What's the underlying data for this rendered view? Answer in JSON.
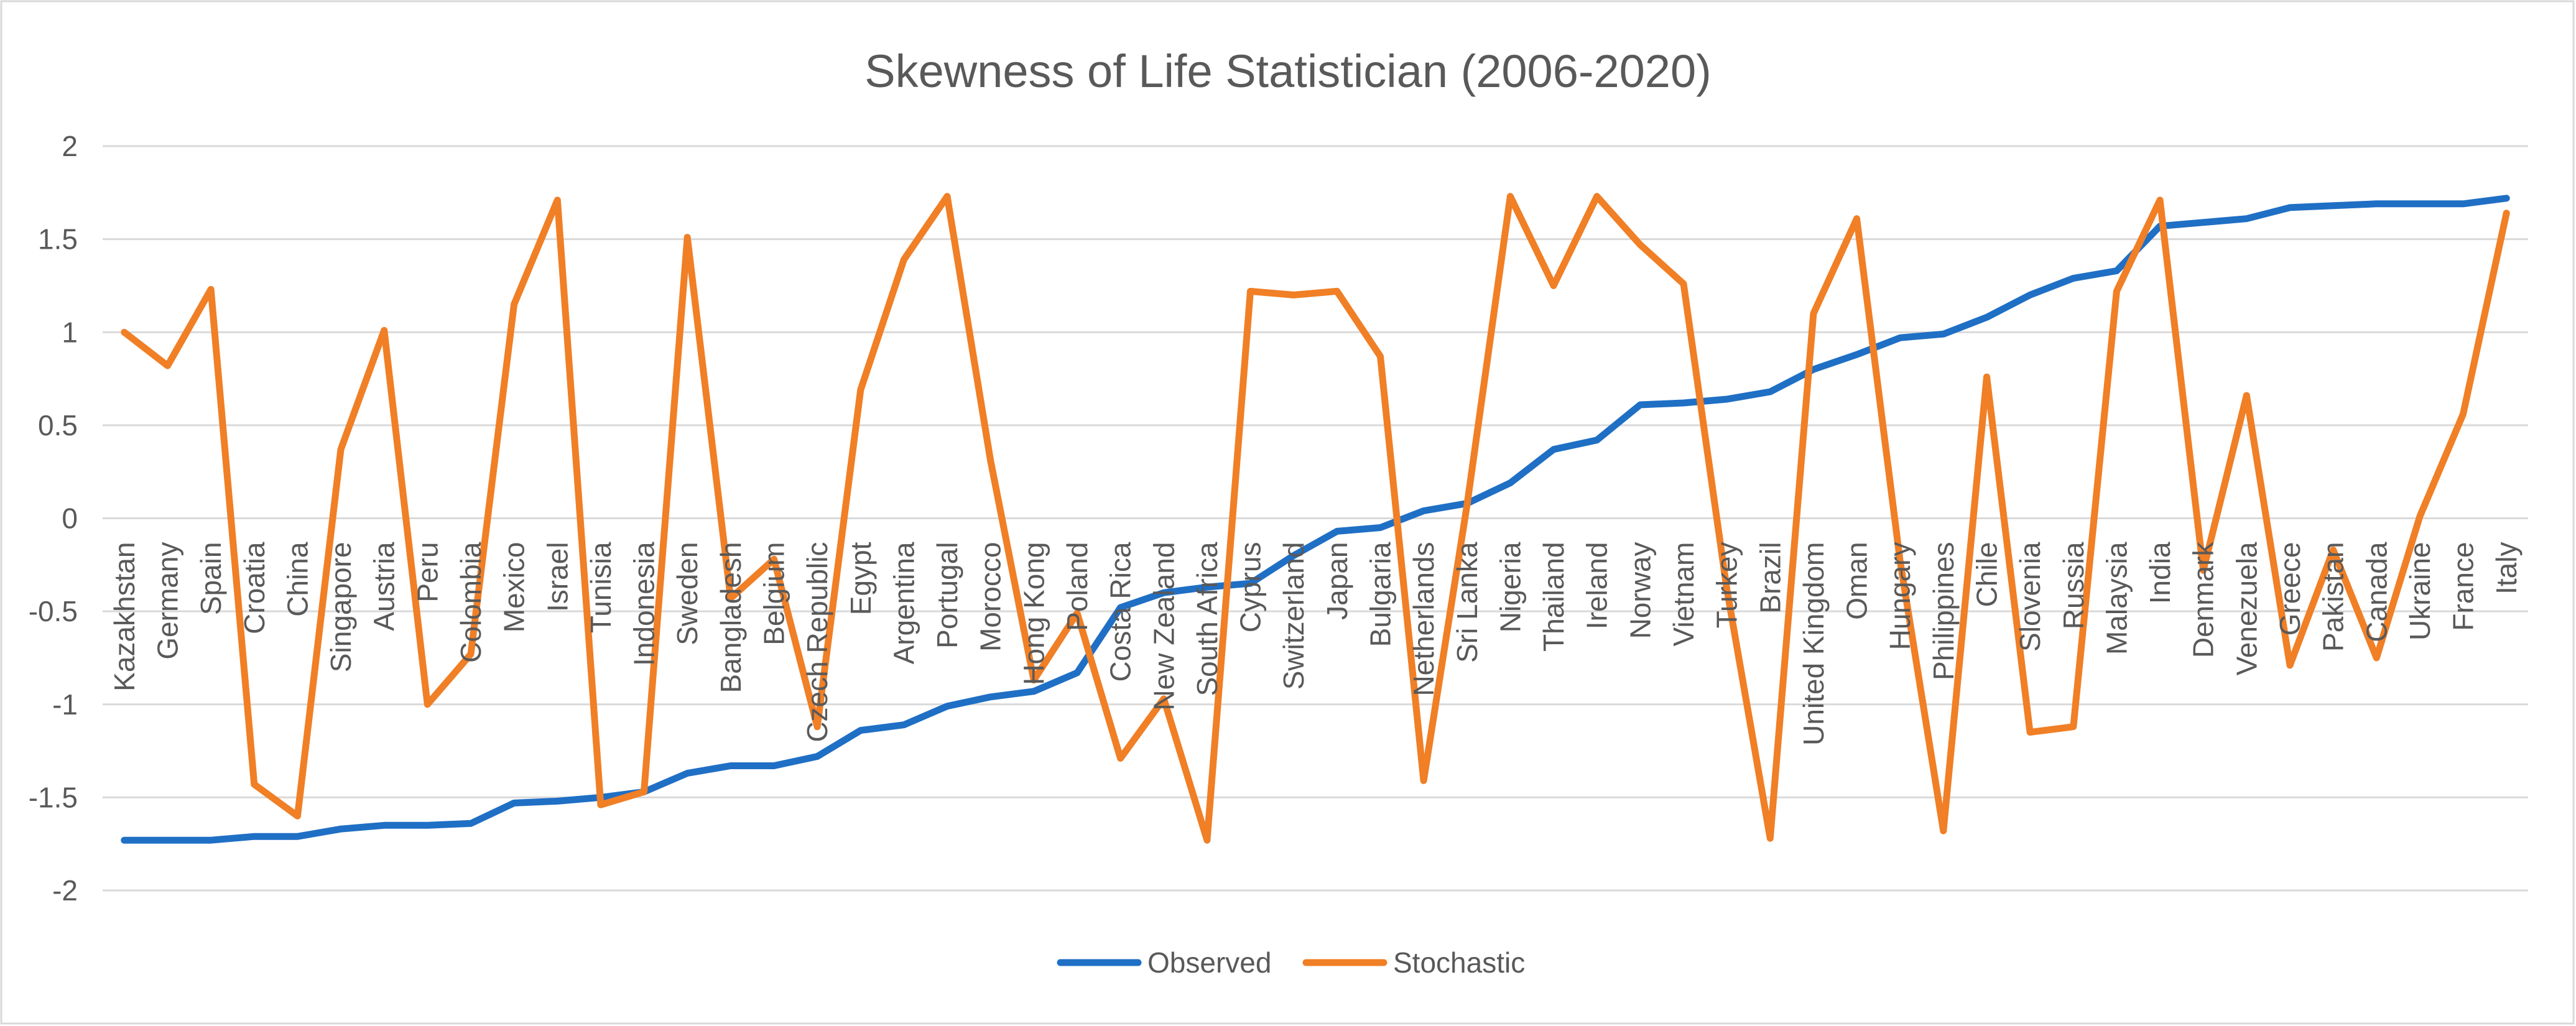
{
  "chart_data": {
    "type": "line",
    "title": "Skewness of Life Statistician (2006-2020)",
    "xlabel": "",
    "ylabel": "",
    "ylim": [
      -2,
      2
    ],
    "ytick_step": 0.5,
    "ytick_labels": [
      "2",
      "1.5",
      "1",
      "0.5",
      "0",
      "-0.5",
      "-1",
      "-1.5",
      "-2"
    ],
    "grid": true,
    "legend_position": "bottom-center",
    "categories": [
      "Kazakhstan",
      "Germany",
      "Spain",
      "Croatia",
      "China",
      "Singapore",
      "Austria",
      "Peru",
      "Colombia",
      "Mexico",
      "Israel",
      "Tunisia",
      "Indonesia",
      "Sweden",
      "Bangladesh",
      "Belgium",
      "Czech Republic",
      "Egypt",
      "Argentina",
      "Portugal",
      "Morocco",
      "Hong Kong",
      "Poland",
      "Costa Rica",
      "New Zealand",
      "South Africa",
      "Cyprus",
      "Switzerland",
      "Japan",
      "Bulgaria",
      "Netherlands",
      "Sri Lanka",
      "Nigeria",
      "Thailand",
      "Ireland",
      "Norway",
      "Vietnam",
      "Turkey",
      "Brazil",
      "United Kingdom",
      "Oman",
      "Hungary",
      "Philippines",
      "Chile",
      "Slovenia",
      "Russia",
      "Malaysia",
      "India",
      "Denmark",
      "Venezuela",
      "Greece",
      "Pakistan",
      "Canada",
      "Ukraine",
      "France",
      "Italy"
    ],
    "series": [
      {
        "name": "Observed",
        "color": "#1f6fc5",
        "values": [
          -1.73,
          -1.73,
          -1.73,
          -1.71,
          -1.71,
          -1.67,
          -1.65,
          -1.65,
          -1.64,
          -1.53,
          -1.52,
          -1.5,
          -1.47,
          -1.37,
          -1.33,
          -1.33,
          -1.28,
          -1.14,
          -1.11,
          -1.01,
          -0.96,
          -0.93,
          -0.83,
          -0.48,
          -0.4,
          -0.37,
          -0.35,
          -0.2,
          -0.07,
          -0.05,
          0.04,
          0.08,
          0.19,
          0.37,
          0.42,
          0.61,
          0.62,
          0.64,
          0.68,
          0.8,
          0.88,
          0.97,
          0.99,
          1.08,
          1.2,
          1.29,
          1.33,
          1.57,
          1.59,
          1.61,
          1.67,
          1.68,
          1.69,
          1.69,
          1.69,
          1.72
        ]
      },
      {
        "name": "Stochastic",
        "color": "#f07f26",
        "values": [
          1.0,
          0.82,
          1.23,
          -1.43,
          -1.6,
          0.37,
          1.01,
          -1.0,
          -0.73,
          1.15,
          1.71,
          -1.54,
          -1.47,
          1.51,
          -0.43,
          -0.22,
          -1.12,
          0.69,
          1.39,
          1.73,
          0.31,
          -0.87,
          -0.51,
          -1.29,
          -0.97,
          -1.73,
          1.22,
          1.2,
          1.22,
          0.87,
          -1.41,
          0.07,
          1.73,
          1.25,
          1.73,
          1.47,
          1.26,
          -0.38,
          -1.72,
          1.1,
          1.61,
          -0.23,
          -1.68,
          0.76,
          -1.15,
          -1.12,
          1.22,
          1.71,
          -0.28,
          0.66,
          -0.79,
          -0.17,
          -0.75,
          0.01,
          0.56,
          1.64
        ]
      }
    ]
  }
}
